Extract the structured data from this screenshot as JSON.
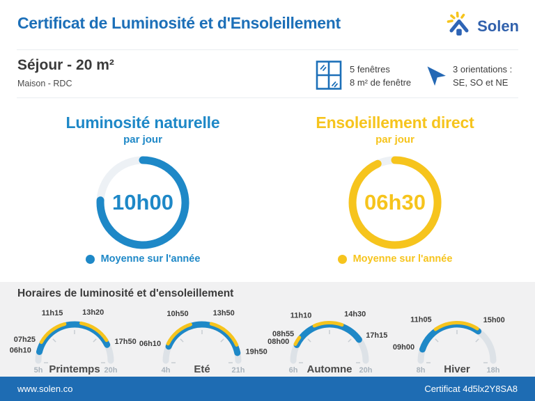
{
  "header": {
    "title": "Certificat de Luminosité et d'Ensoleillement",
    "brand": "Solen"
  },
  "room": {
    "title": "Séjour - 20 m²",
    "subtitle": "Maison - RDC",
    "windows": {
      "line1": "5 fenêtres",
      "line2": "8 m² de fenêtre"
    },
    "orientations": {
      "line1": "3 orientations :",
      "line2": "SE, SO et NE"
    }
  },
  "sections": {
    "schedule_title": "Horaires de luminosité et d'ensoleillement"
  },
  "footer": {
    "left": "www.solen.co",
    "right": "Certificat 4d5lx2Y8SA8"
  },
  "colors": {
    "brand_blue": "#1c6fb8",
    "logo_navy": "#3161ac",
    "gauge_blue": "#1e88c7",
    "gauge_yellow": "#f6c41d",
    "arc_track": "#dde2e7",
    "donut_track": "#edf1f5",
    "tick": "#c7cdd3",
    "section_bg": "#f1f1f2",
    "footer_bg": "#1e6cb3",
    "text_dark": "#3a3a3a",
    "text_muted": "#a9b3bc"
  },
  "chart_data": {
    "daily": [
      {
        "type": "donut",
        "title": "Luminosité naturelle",
        "subtitle": "par jour",
        "value": "10h00",
        "legend": "Moyenne sur l'année",
        "color": "#1e88c7",
        "sweep_deg": 273
      },
      {
        "type": "donut",
        "title": "Ensoleillement direct",
        "subtitle": "par jour",
        "value": "06h30",
        "legend": "Moyenne sur l'année",
        "color": "#f6c41d",
        "sweep_deg": 336
      }
    ],
    "seasons": {
      "type": "arc-gauge",
      "items": [
        {
          "name": "Printemps",
          "axis_start": 5,
          "axis_end": 20,
          "axis_start_label": "5h",
          "axis_end_label": "20h",
          "light_hours": {
            "start": 6.167,
            "end": 17.833
          },
          "sun_hours": [
            {
              "start": 7.417,
              "end": 11.25
            },
            {
              "start": 13.333,
              "end": 17.3
            }
          ],
          "labels": [
            {
              "text": "06h10",
              "hour": 6.167
            },
            {
              "text": "07h25",
              "hour": 7.417
            },
            {
              "text": "11h15",
              "hour": 11.25
            },
            {
              "text": "13h20",
              "hour": 13.333
            },
            {
              "text": "17h50",
              "hour": 17.833
            }
          ]
        },
        {
          "name": "Eté",
          "axis_start": 4,
          "axis_end": 21,
          "axis_start_label": "4h",
          "axis_end_label": "21h",
          "light_hours": {
            "start": 6.167,
            "end": 19.833
          },
          "sun_hours": [
            {
              "start": 6.5,
              "end": 10.833
            },
            {
              "start": 13.833,
              "end": 18.7
            }
          ],
          "labels": [
            {
              "text": "06h10",
              "hour": 6.167
            },
            {
              "text": "10h50",
              "hour": 10.833
            },
            {
              "text": "13h50",
              "hour": 13.833
            },
            {
              "text": "19h50",
              "hour": 19.833
            }
          ]
        },
        {
          "name": "Automne",
          "axis_start": 6,
          "axis_end": 20,
          "axis_start_label": "6h",
          "axis_end_label": "20h",
          "light_hours": {
            "start": 8.0,
            "end": 17.25
          },
          "sun_hours": [
            {
              "start": 8.0,
              "end": 8.917
            },
            {
              "start": 11.167,
              "end": 14.5
            }
          ],
          "labels": [
            {
              "text": "08h00",
              "hour": 8.0
            },
            {
              "text": "08h55",
              "hour": 8.917
            },
            {
              "text": "11h10",
              "hour": 11.167
            },
            {
              "text": "14h30",
              "hour": 14.5
            },
            {
              "text": "17h15",
              "hour": 17.25
            }
          ]
        },
        {
          "name": "Hiver",
          "axis_start": 8,
          "axis_end": 18,
          "axis_start_label": "8h",
          "axis_end_label": "18h",
          "light_hours": {
            "start": 9.0,
            "end": 15.0
          },
          "sun_hours": [
            {
              "start": 11.083,
              "end": 14.8
            }
          ],
          "labels": [
            {
              "text": "09h00",
              "hour": 9.0
            },
            {
              "text": "11h05",
              "hour": 11.083
            },
            {
              "text": "15h00",
              "hour": 15.0
            }
          ]
        }
      ]
    }
  }
}
